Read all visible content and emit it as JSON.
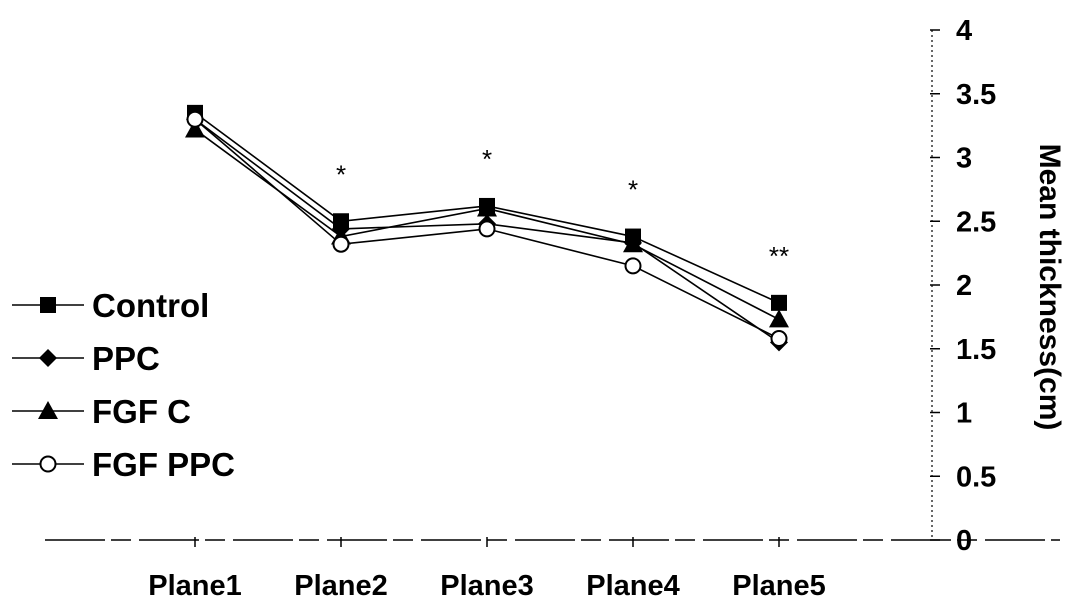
{
  "chart_data": {
    "type": "line",
    "categories": [
      "Plane1",
      "Plane2",
      "Plane3",
      "Plane4",
      "Plane5"
    ],
    "series": [
      {
        "name": "Control",
        "marker": "square",
        "values": [
          3.35,
          2.5,
          2.62,
          2.38,
          1.86
        ]
      },
      {
        "name": "PPC",
        "marker": "diamond",
        "values": [
          3.3,
          2.44,
          2.48,
          2.33,
          1.55
        ]
      },
      {
        "name": "FGF C",
        "marker": "triangle",
        "values": [
          3.22,
          2.38,
          2.6,
          2.32,
          1.73
        ]
      },
      {
        "name": "FGF PPC",
        "marker": "circle-open",
        "values": [
          3.3,
          2.32,
          2.44,
          2.15,
          1.58
        ]
      }
    ],
    "annotations": [
      {
        "category": "Plane2",
        "text": "*"
      },
      {
        "category": "Plane3",
        "text": "*"
      },
      {
        "category": "Plane4",
        "text": "*"
      },
      {
        "category": "Plane5",
        "text": "**"
      }
    ],
    "ylabel": "Mean thickness(cm)",
    "ylim": [
      0,
      4
    ],
    "yticks": [
      "0",
      "0.5",
      "1",
      "1.5",
      "2",
      "2.5",
      "3",
      "3.5",
      "4"
    ],
    "yaxis_side": "right",
    "legend_position": "left",
    "grid": false,
    "colors": {
      "line": "#000000",
      "background": "#ffffff"
    }
  }
}
